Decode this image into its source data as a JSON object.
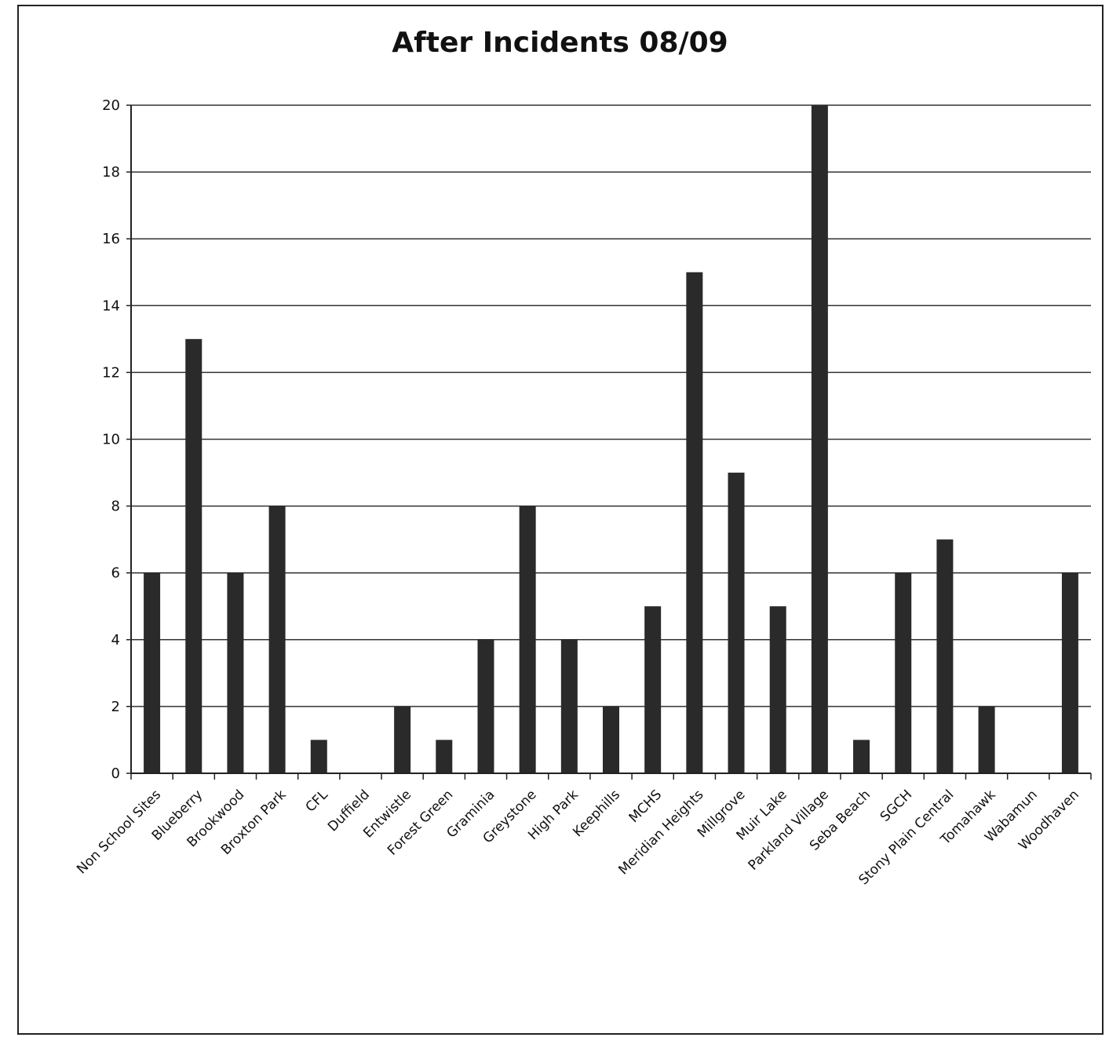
{
  "chart_data": {
    "type": "bar",
    "title": "After Incidents 08/09",
    "xlabel": "",
    "ylabel": "",
    "ylim": [
      0,
      20
    ],
    "yticks": [
      0,
      2,
      4,
      6,
      8,
      10,
      12,
      14,
      16,
      18,
      20
    ],
    "grid": true,
    "legend": "none",
    "bar_color": "#2a2a2a",
    "categories": [
      "Non School Sites",
      "Blueberry",
      "Brookwood",
      "Broxton Park",
      "CFL",
      "Duffield",
      "Entwistle",
      "Forest Green",
      "Graminia",
      "Greystone",
      "High Park",
      "Keephills",
      "MCHS",
      "Meridian Heights",
      "Millgrove",
      "Muir Lake",
      "Parkland Village",
      "Seba Beach",
      "SGCH",
      "Stony Plain Central",
      "Tomahawk",
      "Wabamun",
      "Woodhaven"
    ],
    "values": [
      6,
      13,
      6,
      8,
      1,
      0,
      2,
      1,
      4,
      8,
      4,
      2,
      5,
      15,
      9,
      5,
      20,
      1,
      6,
      7,
      2,
      0,
      6
    ]
  }
}
